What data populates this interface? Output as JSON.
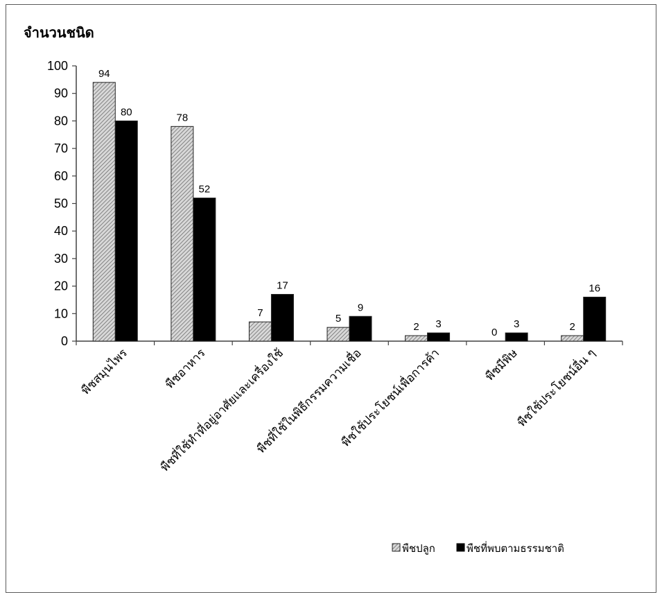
{
  "chart_data": {
    "type": "bar",
    "title": "",
    "ylabel": "จำนวนชนิด",
    "xlabel": "",
    "ylim": [
      0,
      100
    ],
    "yticks": [
      0,
      10,
      20,
      30,
      40,
      50,
      60,
      70,
      80,
      90,
      100
    ],
    "grid": false,
    "legend_position": "bottom-right",
    "categories": [
      "พืชสมุนไพร",
      "พืชอาหาร",
      "พืชที่ใช้ทำที่อยู่อาศัยและเครื่องใช้",
      "พืชที่ใช้ในพิธีกรรมความเชื่อ",
      "พืชใช้ประโยชน์เพื่อการค้า",
      "พืชมีพิษ",
      "พืชใช้ประโยชน์อื่น  ๆ"
    ],
    "series": [
      {
        "name": "พืชปลูก",
        "values": [
          94,
          78,
          7,
          5,
          2,
          0,
          2
        ],
        "fill": "hatch"
      },
      {
        "name": "พืชที่พบตามธรรมชาติ",
        "values": [
          80,
          52,
          17,
          9,
          3,
          3,
          16
        ],
        "fill": "#000000"
      }
    ],
    "colors": {
      "hatch_bg": "#d8d8d8",
      "hatch_line": "#6e6e6e",
      "solid": "#000000",
      "axis": "#404040"
    }
  }
}
